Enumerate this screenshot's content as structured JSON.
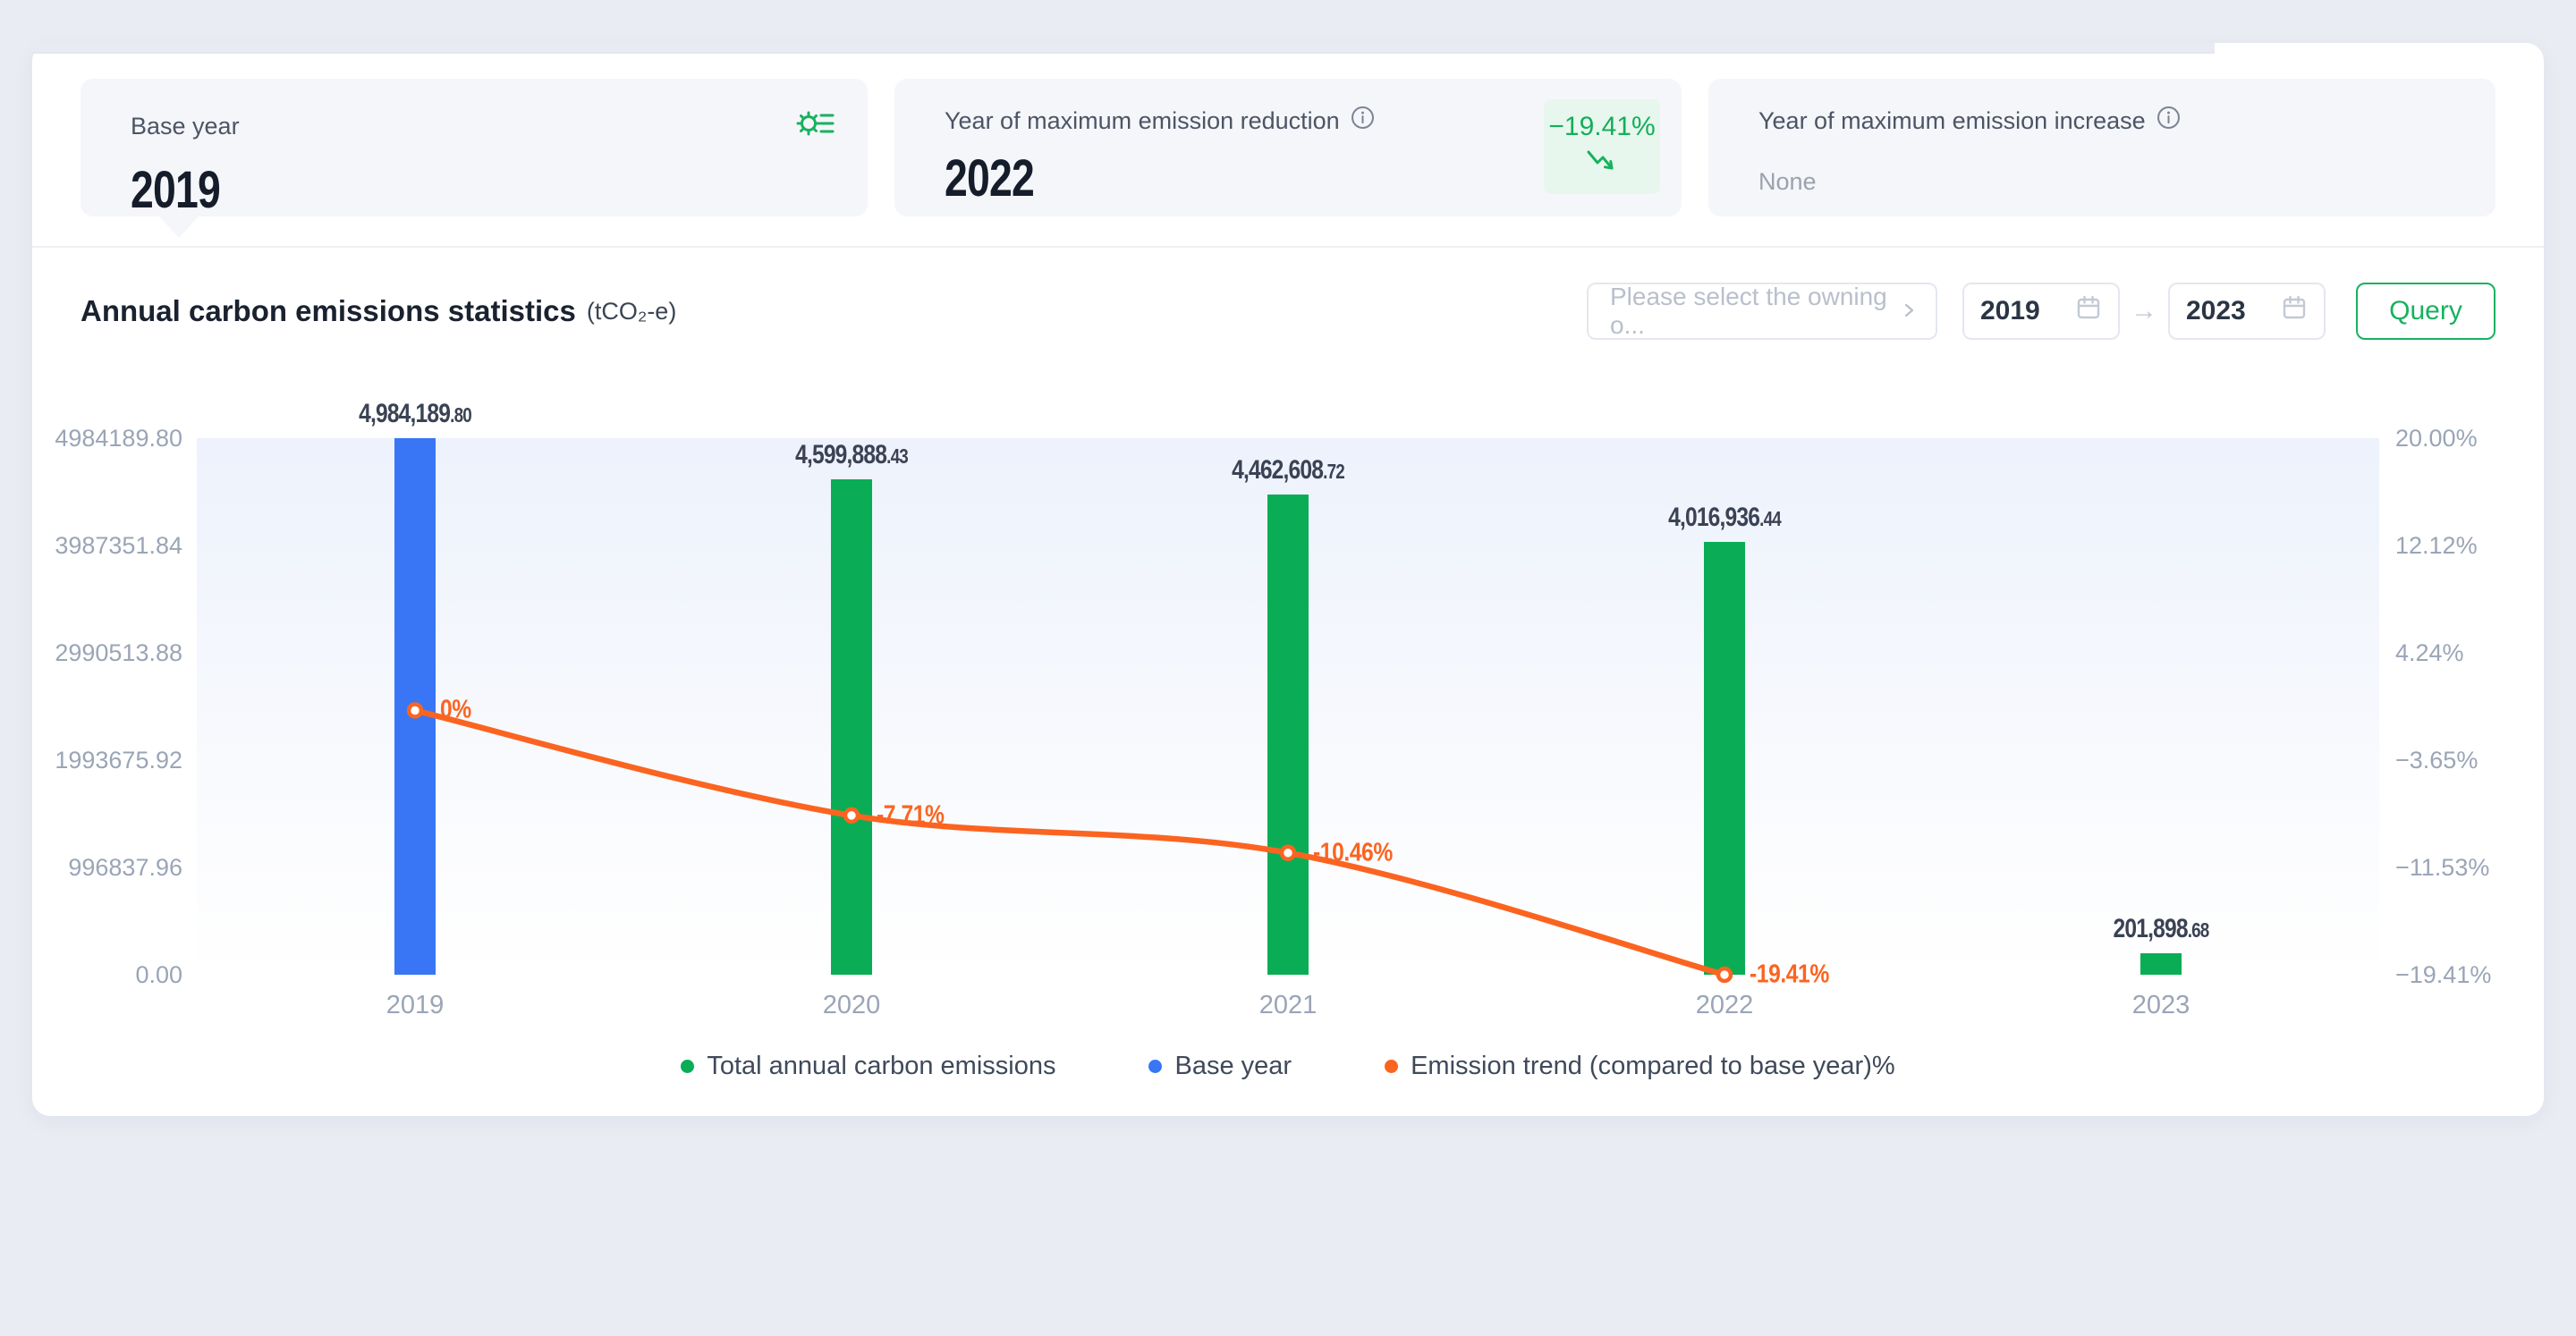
{
  "colors": {
    "accent_green": "#17b25f",
    "bar_green": "#0aad55",
    "bar_blue": "#3876f6",
    "line_orange": "#fb6420",
    "badge_bg": "#e7f7ed",
    "page_bg": "#e9ecf3"
  },
  "icons": {
    "gear_list": "settings-gear-with-list",
    "info": "circled-i",
    "chevron_right": "›",
    "calendar": "calendar-grid",
    "trend_down": "↘",
    "range_arrow": "→"
  },
  "stats": {
    "cards": [
      {
        "label": "Base year",
        "value": "2019"
      },
      {
        "label": "Year of maximum emission reduction",
        "value": "2022",
        "badge": "−19.41%"
      },
      {
        "label": "Year of maximum emission increase",
        "value": "None"
      }
    ]
  },
  "toolbar": {
    "select_placeholder": "Please select the owning o...",
    "year_from": "2019",
    "year_to": "2023",
    "range_arrow": "→",
    "query_label": "Query"
  },
  "chart_data": {
    "type": "bar",
    "title": "Annual carbon emissions statistics",
    "unit": "(tCO₂-e)",
    "categories": [
      "2019",
      "2020",
      "2021",
      "2022",
      "2023"
    ],
    "base_year_category": "2019",
    "series": [
      {
        "name": "Total annual carbon emissions",
        "type": "bar",
        "yaxis": "left",
        "color": "#0aad55",
        "values": [
          4984189.8,
          4599888.43,
          4462608.72,
          4016936.44,
          201898.68
        ],
        "value_labels": [
          "4,984,189.80",
          "4,599,888.43",
          "4,462,608.72",
          "4,016,936.44",
          "201,898.68"
        ]
      },
      {
        "name": "Base year",
        "type": "bar-highlight",
        "color": "#3876f6"
      },
      {
        "name": "Emission trend (compared to base year)%",
        "type": "line",
        "yaxis": "right",
        "color": "#fb6420",
        "values": [
          0,
          -7.71,
          -10.46,
          -19.41
        ],
        "point_labels": [
          "0%",
          "-7.71%",
          "-10.46%",
          "-19.41%"
        ]
      }
    ],
    "left_axis": {
      "min": 0,
      "max": 4984189.8,
      "ticks": [
        "4984189.80",
        "3987351.84",
        "2990513.88",
        "1993675.92",
        "996837.96",
        "0.00"
      ]
    },
    "right_axis": {
      "min": -19.41,
      "max": 20.0,
      "ticks": [
        "20.00%",
        "12.12%",
        "4.24%",
        "−3.65%",
        "−11.53%",
        "−19.41%"
      ]
    },
    "grid": true,
    "legend_position": "bottom",
    "legend": [
      {
        "label": "Total annual carbon emissions",
        "color": "#0aad55"
      },
      {
        "label": "Base year",
        "color": "#3876f6"
      },
      {
        "label": "Emission trend (compared to base year)%",
        "color": "#fb6420"
      }
    ]
  }
}
